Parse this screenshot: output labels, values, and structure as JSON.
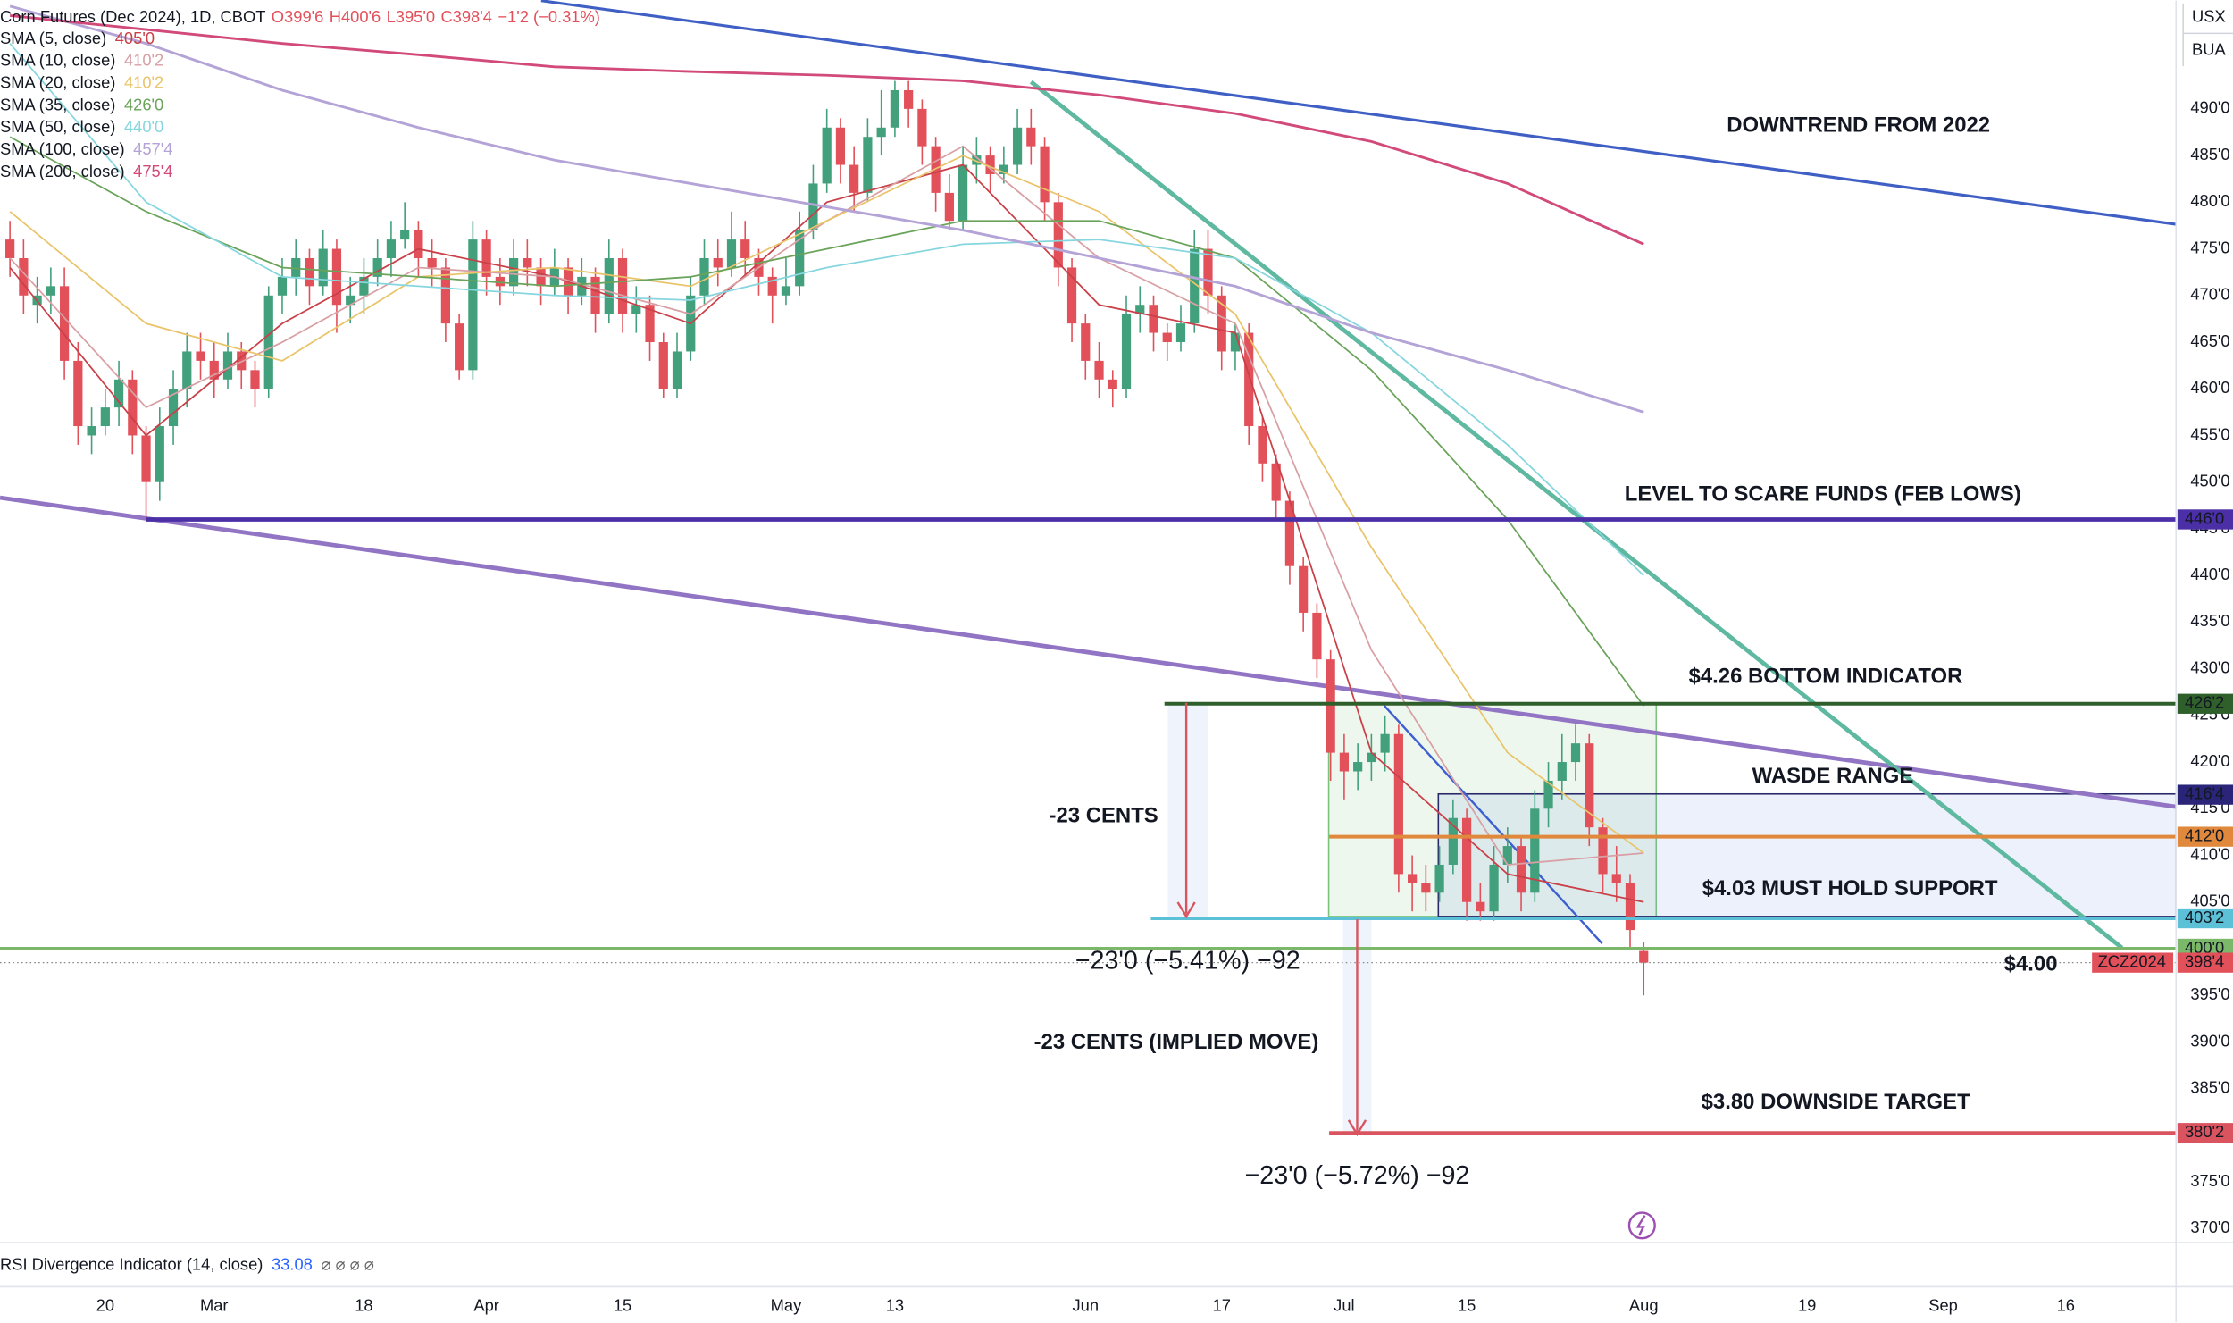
{
  "header": {
    "title": "Corn Futures (Dec 2024), 1D, CBOT",
    "open": "O399'6",
    "high": "H400'6",
    "low": "L395'0",
    "close": "C398'4",
    "change": "−1'2 (−0.31%)"
  },
  "currency": "USX",
  "unit": "BUA",
  "chart_data": {
    "type": "candlestick",
    "up_color": "#42a07c",
    "down_color": "#e2505a",
    "candles": [
      [
        476,
        478,
        472,
        474
      ],
      [
        474,
        476,
        468,
        470
      ],
      [
        469,
        472,
        467,
        470
      ],
      [
        470,
        473,
        468,
        471
      ],
      [
        471,
        473,
        461,
        463
      ],
      [
        463,
        465,
        454,
        456
      ],
      [
        455,
        458,
        453,
        456
      ],
      [
        456,
        460,
        455,
        458
      ],
      [
        458,
        463,
        456,
        461
      ],
      [
        461,
        462,
        453,
        455
      ],
      [
        455,
        456,
        446,
        450
      ],
      [
        450,
        458,
        448,
        456
      ],
      [
        456,
        462,
        454,
        460
      ],
      [
        460,
        466,
        458,
        464
      ],
      [
        464,
        466,
        461,
        463
      ],
      [
        463,
        465,
        459,
        461
      ],
      [
        461,
        466,
        460,
        464
      ],
      [
        464,
        465,
        460,
        462
      ],
      [
        462,
        463,
        458,
        460
      ],
      [
        460,
        471,
        459,
        470
      ],
      [
        470,
        474,
        468,
        472
      ],
      [
        472,
        476,
        470,
        474
      ],
      [
        474,
        475,
        469,
        471
      ],
      [
        471,
        477,
        470,
        475
      ],
      [
        475,
        476,
        466,
        469
      ],
      [
        469,
        472,
        467,
        470
      ],
      [
        470,
        474,
        468,
        472
      ],
      [
        472,
        476,
        471,
        474
      ],
      [
        474,
        478,
        472,
        476
      ],
      [
        476,
        480,
        475,
        477
      ],
      [
        477,
        478,
        472,
        474
      ],
      [
        474,
        476,
        471,
        473
      ],
      [
        473,
        474,
        465,
        467
      ],
      [
        467,
        468,
        461,
        462
      ],
      [
        462,
        478,
        461,
        476
      ],
      [
        476,
        477,
        470,
        472
      ],
      [
        472,
        474,
        469,
        471
      ],
      [
        471,
        476,
        470,
        474
      ],
      [
        474,
        476,
        471,
        473
      ],
      [
        473,
        474,
        469,
        471
      ],
      [
        471,
        475,
        470,
        473
      ],
      [
        473,
        474,
        468,
        470
      ],
      [
        470,
        474,
        469,
        472
      ],
      [
        472,
        473,
        466,
        468
      ],
      [
        468,
        476,
        467,
        474
      ],
      [
        474,
        475,
        466,
        468
      ],
      [
        468,
        471,
        466,
        469
      ],
      [
        469,
        470,
        463,
        465
      ],
      [
        465,
        466,
        459,
        460
      ],
      [
        460,
        466,
        459,
        464
      ],
      [
        464,
        472,
        463,
        470
      ],
      [
        470,
        476,
        469,
        474
      ],
      [
        474,
        476,
        471,
        473
      ],
      [
        473,
        479,
        472,
        476
      ],
      [
        476,
        478,
        472,
        474
      ],
      [
        474,
        475,
        470,
        472
      ],
      [
        472,
        473,
        467,
        470
      ],
      [
        470,
        474,
        469,
        471
      ],
      [
        471,
        479,
        470,
        477
      ],
      [
        477,
        484,
        476,
        482
      ],
      [
        482,
        490,
        481,
        488
      ],
      [
        488,
        489,
        482,
        484
      ],
      [
        484,
        486,
        479,
        481
      ],
      [
        481,
        489,
        480,
        487
      ],
      [
        487,
        492,
        485,
        488
      ],
      [
        488,
        493,
        487,
        492
      ],
      [
        492,
        493,
        488,
        490
      ],
      [
        490,
        491,
        484,
        486
      ],
      [
        486,
        487,
        479,
        481
      ],
      [
        481,
        483,
        477,
        478
      ],
      [
        478,
        486,
        477,
        484
      ],
      [
        484,
        487,
        482,
        485
      ],
      [
        485,
        486,
        481,
        483
      ],
      [
        483,
        486,
        482,
        484
      ],
      [
        484,
        490,
        483,
        488
      ],
      [
        488,
        490,
        484,
        486
      ],
      [
        486,
        487,
        478,
        480
      ],
      [
        480,
        481,
        471,
        473
      ],
      [
        473,
        474,
        465,
        467
      ],
      [
        467,
        468,
        461,
        463
      ],
      [
        463,
        465,
        459,
        461
      ],
      [
        461,
        462,
        458,
        460
      ],
      [
        460,
        470,
        459,
        468
      ],
      [
        468,
        471,
        466,
        469
      ],
      [
        469,
        470,
        464,
        466
      ],
      [
        466,
        467,
        463,
        465
      ],
      [
        465,
        469,
        464,
        467
      ],
      [
        467,
        477,
        466,
        475
      ],
      [
        475,
        477,
        468,
        470
      ],
      [
        470,
        471,
        462,
        464
      ],
      [
        464,
        467,
        462,
        466
      ],
      [
        466,
        467,
        454,
        456
      ],
      [
        456,
        457,
        450,
        452
      ],
      [
        452,
        453,
        446,
        448
      ],
      [
        448,
        449,
        439,
        441
      ],
      [
        441,
        442,
        434,
        436
      ],
      [
        436,
        437,
        429,
        431
      ],
      [
        431,
        432,
        418,
        421
      ],
      [
        421,
        423,
        416,
        419
      ],
      [
        419,
        422,
        417,
        420
      ],
      [
        420,
        423,
        418,
        421
      ],
      [
        421,
        425,
        419,
        423
      ],
      [
        423,
        424,
        406,
        408
      ],
      [
        408,
        410,
        404,
        407
      ],
      [
        407,
        409,
        404,
        406
      ],
      [
        406,
        411,
        405,
        409
      ],
      [
        409,
        416,
        408,
        414
      ],
      [
        414,
        415,
        403,
        405
      ],
      [
        405,
        407,
        403,
        404
      ],
      [
        404,
        411,
        403,
        409
      ],
      [
        409,
        413,
        407,
        411
      ],
      [
        411,
        412,
        404,
        406
      ],
      [
        406,
        417,
        405,
        415
      ],
      [
        415,
        420,
        413,
        418
      ],
      [
        418,
        423,
        416,
        420
      ],
      [
        420,
        424,
        418,
        422
      ],
      [
        422,
        423,
        411,
        413
      ],
      [
        413,
        414,
        406,
        408
      ],
      [
        408,
        411,
        405,
        407
      ],
      [
        407,
        408,
        400,
        402
      ],
      [
        399.75,
        400.75,
        395,
        398.5
      ]
    ],
    "xlim": [
      -0.73,
      159.1
    ],
    "xticks": [
      {
        "value": 7,
        "label": "20"
      },
      {
        "value": 15,
        "label": "Mar"
      },
      {
        "value": 26,
        "label": "18"
      },
      {
        "value": 35,
        "label": "Apr"
      },
      {
        "value": 45,
        "label": "15"
      },
      {
        "value": 57,
        "label": "May"
      },
      {
        "value": 65,
        "label": "13"
      },
      {
        "value": 79,
        "label": "Jun"
      },
      {
        "value": 89,
        "label": "17"
      },
      {
        "value": 98,
        "label": "Jul"
      },
      {
        "value": 107,
        "label": "15"
      },
      {
        "value": 120,
        "label": "Aug"
      },
      {
        "value": 132,
        "label": "19"
      },
      {
        "value": 142,
        "label": "Sep"
      },
      {
        "value": 151,
        "label": "16"
      }
    ],
    "ylim": [
      368.5,
      501.6
    ],
    "yticks": [
      {
        "value": 490,
        "label": "490'0"
      },
      {
        "value": 485,
        "label": "485'0"
      },
      {
        "value": 480,
        "label": "480'0"
      },
      {
        "value": 475,
        "label": "475'0"
      },
      {
        "value": 470,
        "label": "470'0"
      },
      {
        "value": 465,
        "label": "465'0"
      },
      {
        "value": 460,
        "label": "460'0"
      },
      {
        "value": 455,
        "label": "455'0"
      },
      {
        "value": 450,
        "label": "450'0"
      },
      {
        "value": 445,
        "label": "445'0"
      },
      {
        "value": 440,
        "label": "440'0"
      },
      {
        "value": 435,
        "label": "435'0"
      },
      {
        "value": 430,
        "label": "430'0"
      },
      {
        "value": 425,
        "label": "425'0"
      },
      {
        "value": 420,
        "label": "420'0"
      },
      {
        "value": 415,
        "label": "415'0"
      },
      {
        "value": 410,
        "label": "410'0"
      },
      {
        "value": 405,
        "label": "405'0"
      },
      {
        "value": 395,
        "label": "395'0"
      },
      {
        "value": 390,
        "label": "390'0"
      },
      {
        "value": 385,
        "label": "385'0"
      },
      {
        "value": 375,
        "label": "375'0"
      },
      {
        "value": 370,
        "label": "370'0"
      }
    ],
    "grid": false,
    "series": [
      {
        "name": "SMA (5, close)",
        "last_label": "405'0",
        "color": "#c94048",
        "x": [
          0,
          10,
          20,
          30,
          40,
          50,
          60,
          70,
          80,
          90,
          100,
          110,
          120
        ],
        "values": [
          473,
          455,
          467,
          475,
          472,
          467,
          480,
          484,
          469,
          466,
          421,
          408,
          405
        ]
      },
      {
        "name": "SMA (10, close)",
        "last_label": "410'2",
        "color": "#d8a0a4",
        "x": [
          0,
          10,
          20,
          30,
          40,
          50,
          60,
          70,
          80,
          90,
          100,
          110,
          120
        ],
        "values": [
          474,
          458,
          465,
          473,
          472,
          468,
          478,
          486,
          474,
          467,
          432,
          409,
          410.25
        ]
      },
      {
        "name": "SMA (20, close)",
        "last_label": "410'2",
        "color": "#e9c46a",
        "x": [
          0,
          10,
          20,
          30,
          40,
          50,
          60,
          70,
          80,
          90,
          100,
          110,
          120
        ],
        "values": [
          479,
          467,
          463,
          472,
          473,
          471,
          478,
          485,
          479,
          468,
          443,
          421,
          410.25
        ]
      },
      {
        "name": "SMA (35, close)",
        "last_label": "426'0",
        "color": "#6aa35a",
        "x": [
          0,
          10,
          20,
          30,
          40,
          50,
          60,
          70,
          80,
          90,
          100,
          110,
          120
        ],
        "values": [
          487,
          479,
          473,
          472,
          471,
          472,
          475,
          478,
          478,
          474,
          462,
          446,
          426
        ]
      },
      {
        "name": "SMA (50, close)",
        "last_label": "440'0",
        "color": "#86d6df",
        "x": [
          0,
          10,
          20,
          30,
          40,
          50,
          60,
          70,
          80,
          90,
          100,
          110,
          120
        ],
        "values": [
          497,
          480,
          472,
          471,
          470,
          469.5,
          473,
          475.5,
          476,
          474,
          466,
          454,
          440
        ]
      },
      {
        "name": "SMA (100, close)",
        "last_label": "457'4",
        "color": "#b3a3d6",
        "x": [
          0,
          10,
          20,
          30,
          40,
          50,
          60,
          70,
          80,
          90,
          100,
          110,
          120
        ],
        "values": [
          501,
          497,
          492,
          488,
          484.5,
          482,
          479.5,
          477,
          474,
          471,
          466,
          462,
          457.5
        ]
      },
      {
        "name": "SMA (200, close)",
        "last_label": "475'4",
        "color": "#d14a7a",
        "x": [
          0,
          10,
          20,
          30,
          40,
          50,
          60,
          70,
          80,
          90,
          100,
          110,
          120
        ],
        "values": [
          500,
          498.5,
          497,
          495.8,
          494.5,
          494,
          493.6,
          493,
          491.5,
          489.5,
          486.5,
          482,
          475.5
        ]
      }
    ],
    "levels": [
      {
        "value": 446,
        "label": "446'0",
        "color": "#4b2fa6",
        "start": 10
      },
      {
        "value": 426.25,
        "label": "426'2",
        "color": "#2f5f2b",
        "start": 84.8
      },
      {
        "value": 416.5,
        "label": "416'4",
        "color": "#2a2578",
        "start": 104.9
      },
      {
        "value": 412,
        "label": "412'0",
        "color": "#e0893c",
        "start": 96.9
      },
      {
        "value": 403.25,
        "label": "403'2",
        "color": "#5cc0d6",
        "start": 83.8
      },
      {
        "value": 400,
        "label": "400'0",
        "color": "#7cb86a",
        "start": -0.73
      },
      {
        "value": 380.25,
        "label": "380'2",
        "color": "#d9545e",
        "start": 96.9
      }
    ],
    "last_price": {
      "value": 398.5,
      "label": "398'4",
      "symbol": "ZCZ2024",
      "color": "#e2505a"
    },
    "annotations": {
      "downtrend": "DOWNTREND FROM 2022",
      "scare": "LEVEL TO SCARE FUNDS (FEB LOWS)",
      "bottom": "$4.26 BOTTOM INDICATOR",
      "wasde": "WASDE RANGE",
      "cents": "-23 CENTS",
      "support": "$4.03 MUST HOLD SUPPORT",
      "measure1": "−23'0 (−5.41%) −92",
      "four": "$4.00",
      "implied": "-23 CENTS (IMPLIED MOVE)",
      "target": "$3.80 DOWNSIDE TARGET",
      "measure2": "−23'0 (−5.72%) −92"
    }
  },
  "indicator": {
    "name": "RSI Divergence Indicator (14, close)",
    "value": "33.08",
    "icons": "⌀ ⌀ ⌀ ⌀"
  }
}
